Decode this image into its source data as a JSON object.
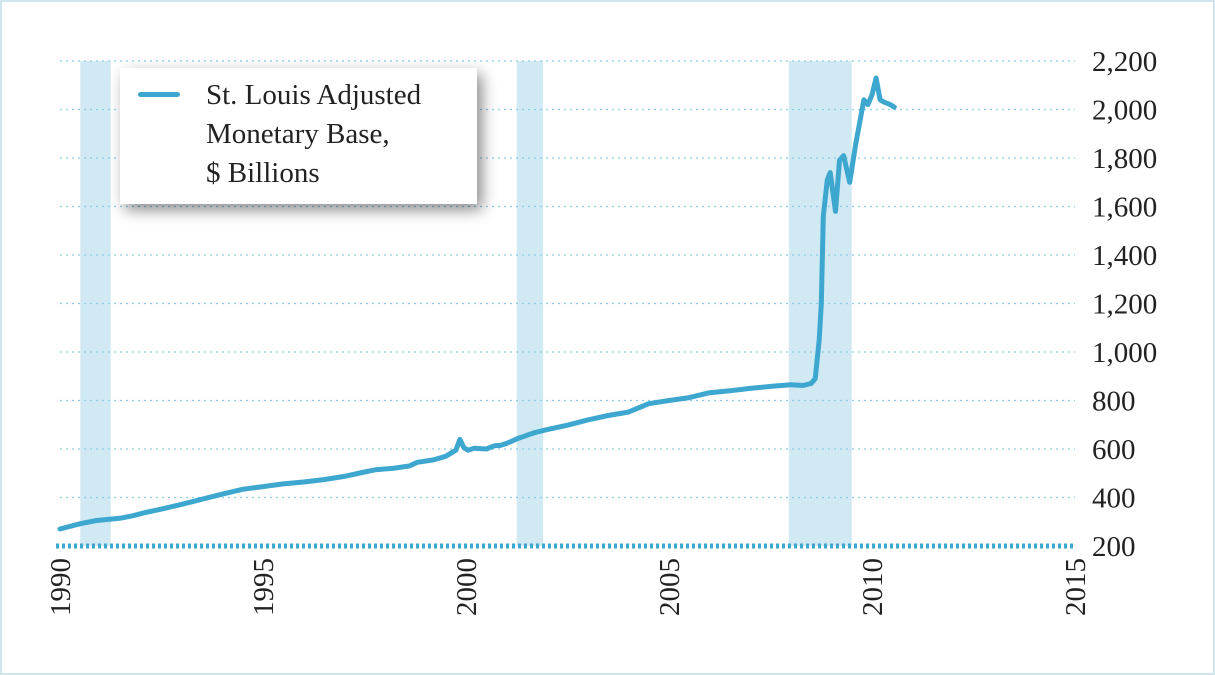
{
  "chart_data": {
    "type": "line",
    "title": "",
    "xlabel": "",
    "ylabel": "",
    "xlim": [
      1990,
      2015
    ],
    "ylim": [
      200,
      2200
    ],
    "x_ticks": [
      "1990",
      "1995",
      "2000",
      "2005",
      "2010",
      "2015"
    ],
    "y_ticks": [
      "200",
      "400",
      "600",
      "800",
      "1,000",
      "1,200",
      "1,400",
      "1,600",
      "1,800",
      "2,000",
      "2,200"
    ],
    "grid": true,
    "legend": {
      "position": "top-left",
      "lines": [
        "St. Louis Adjusted",
        "Monetary Base,",
        "$ Billions"
      ]
    },
    "recession_shading": [
      {
        "start": 1990.5,
        "end": 1991.25
      },
      {
        "start": 2001.25,
        "end": 2001.9
      },
      {
        "start": 2007.95,
        "end": 2009.5
      }
    ],
    "colors": {
      "line": "#3ea7cf",
      "recession": "#d0e9f3",
      "grid": "#8ccbe2",
      "axis": "#3ea7cf"
    },
    "series": [
      {
        "name": "St. Louis Adjusted Monetary Base, $ Billions",
        "x": [
          1990.0,
          1990.5,
          1990.9,
          1991.5,
          1991.8,
          1992.1,
          1992.5,
          1993.0,
          1993.5,
          1994.0,
          1994.5,
          1995.0,
          1995.5,
          1996.0,
          1996.5,
          1997.0,
          1997.5,
          1997.8,
          1998.2,
          1998.6,
          1998.8,
          1999.2,
          1999.5,
          1999.75,
          1999.85,
          1999.95,
          2000.05,
          2000.2,
          2000.5,
          2000.7,
          2000.85,
          2001.0,
          2001.3,
          2001.7,
          2002.0,
          2002.5,
          2003.0,
          2003.5,
          2004.0,
          2004.5,
          2005.0,
          2005.5,
          2006.0,
          2006.5,
          2007.0,
          2007.5,
          2008.0,
          2008.3,
          2008.5,
          2008.6,
          2008.7,
          2008.75,
          2008.8,
          2008.9,
          2008.97,
          2009.1,
          2009.2,
          2009.3,
          2009.45,
          2009.6,
          2009.8,
          2009.9,
          2010.0,
          2010.1,
          2010.2,
          2010.3,
          2010.45,
          2010.55
        ],
        "values": [
          270,
          292,
          305,
          315,
          325,
          338,
          352,
          372,
          393,
          414,
          434,
          445,
          456,
          464,
          474,
          487,
          505,
          515,
          520,
          530,
          545,
          555,
          570,
          595,
          640,
          605,
          595,
          603,
          600,
          613,
          615,
          623,
          645,
          668,
          680,
          698,
          720,
          738,
          752,
          787,
          800,
          812,
          832,
          840,
          850,
          858,
          865,
          862,
          870,
          890,
          1050,
          1200,
          1560,
          1710,
          1740,
          1580,
          1790,
          1810,
          1700,
          1860,
          2040,
          2020,
          2060,
          2130,
          2040,
          2030,
          2020,
          2010
        ]
      }
    ]
  }
}
